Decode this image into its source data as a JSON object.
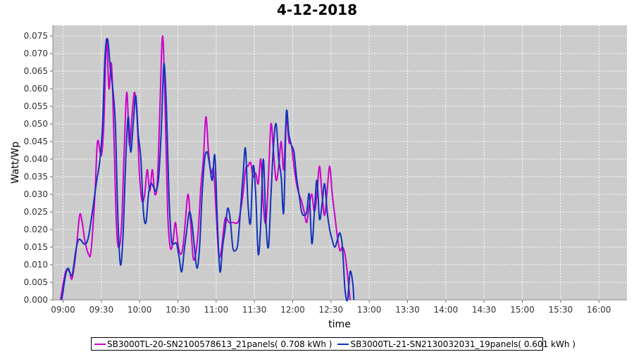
{
  "chart_data": {
    "type": "line",
    "title": "4-12-2018",
    "xlabel": "time",
    "ylabel": "Watt/Wp",
    "xlim": [
      "08:52",
      "16:22"
    ],
    "ylim": [
      0,
      0.078
    ],
    "y_ticks": [
      "0.000",
      "0.005",
      "0.010",
      "0.015",
      "0.020",
      "0.025",
      "0.030",
      "0.035",
      "0.040",
      "0.045",
      "0.050",
      "0.055",
      "0.060",
      "0.065",
      "0.070",
      "0.075"
    ],
    "x_ticks": [
      "09:00",
      "09:30",
      "10:00",
      "10:30",
      "11:00",
      "11:30",
      "12:00",
      "12:30",
      "13:00",
      "13:30",
      "14:00",
      "14:30",
      "15:00",
      "15:30",
      "16:00"
    ],
    "grid": true,
    "legend_position": "bottom",
    "series": [
      {
        "name": "SB3000TL-20-SN2100578613_21panels( 0.708 kWh )",
        "color": "#cc00cc",
        "points": [
          [
            "08:58",
            0.0
          ],
          [
            "09:02",
            0.008
          ],
          [
            "09:05",
            0.008
          ],
          [
            "09:07",
            0.006
          ],
          [
            "09:10",
            0.013
          ],
          [
            "09:13",
            0.024
          ],
          [
            "09:15",
            0.022
          ],
          [
            "09:17",
            0.017
          ],
          [
            "09:20",
            0.013
          ],
          [
            "09:22",
            0.014
          ],
          [
            "09:25",
            0.03
          ],
          [
            "09:27",
            0.045
          ],
          [
            "09:30",
            0.041
          ],
          [
            "09:32",
            0.05
          ],
          [
            "09:34",
            0.074
          ],
          [
            "09:36",
            0.06
          ],
          [
            "09:38",
            0.067
          ],
          [
            "09:40",
            0.045
          ],
          [
            "09:42",
            0.02
          ],
          [
            "09:44",
            0.015
          ],
          [
            "09:46",
            0.022
          ],
          [
            "09:48",
            0.043
          ],
          [
            "09:50",
            0.059
          ],
          [
            "09:52",
            0.044
          ],
          [
            "09:54",
            0.052
          ],
          [
            "09:56",
            0.059
          ],
          [
            "09:58",
            0.052
          ],
          [
            "10:00",
            0.035
          ],
          [
            "10:02",
            0.028
          ],
          [
            "10:04",
            0.03
          ],
          [
            "10:06",
            0.037
          ],
          [
            "10:08",
            0.031
          ],
          [
            "10:10",
            0.037
          ],
          [
            "10:12",
            0.03
          ],
          [
            "10:14",
            0.034
          ],
          [
            "10:16",
            0.055
          ],
          [
            "10:18",
            0.075
          ],
          [
            "10:20",
            0.055
          ],
          [
            "10:22",
            0.025
          ],
          [
            "10:24",
            0.015
          ],
          [
            "10:26",
            0.016
          ],
          [
            "10:28",
            0.022
          ],
          [
            "10:30",
            0.016
          ],
          [
            "10:32",
            0.013
          ],
          [
            "10:34",
            0.015
          ],
          [
            "10:36",
            0.023
          ],
          [
            "10:38",
            0.03
          ],
          [
            "10:40",
            0.022
          ],
          [
            "10:42",
            0.012
          ],
          [
            "10:44",
            0.013
          ],
          [
            "10:46",
            0.02
          ],
          [
            "10:48",
            0.032
          ],
          [
            "10:50",
            0.04
          ],
          [
            "10:52",
            0.052
          ],
          [
            "10:54",
            0.042
          ],
          [
            "10:56",
            0.036
          ],
          [
            "10:58",
            0.037
          ],
          [
            "11:00",
            0.025
          ],
          [
            "11:02",
            0.013
          ],
          [
            "11:04",
            0.014
          ],
          [
            "11:07",
            0.023
          ],
          [
            "11:10",
            0.022
          ],
          [
            "11:13",
            0.022
          ],
          [
            "11:17",
            0.022
          ],
          [
            "11:19",
            0.025
          ],
          [
            "11:21",
            0.03
          ],
          [
            "11:23",
            0.037
          ],
          [
            "11:25",
            0.038
          ],
          [
            "11:27",
            0.039
          ],
          [
            "11:29",
            0.035
          ],
          [
            "11:31",
            0.036
          ],
          [
            "11:33",
            0.033
          ],
          [
            "11:35",
            0.04
          ],
          [
            "11:37",
            0.027
          ],
          [
            "11:39",
            0.022
          ],
          [
            "11:41",
            0.035
          ],
          [
            "11:43",
            0.05
          ],
          [
            "11:45",
            0.042
          ],
          [
            "11:47",
            0.034
          ],
          [
            "11:49",
            0.038
          ],
          [
            "11:51",
            0.045
          ],
          [
            "11:53",
            0.037
          ],
          [
            "11:55",
            0.052
          ],
          [
            "11:57",
            0.045
          ],
          [
            "11:59",
            0.044
          ],
          [
            "12:01",
            0.038
          ],
          [
            "12:03",
            0.033
          ],
          [
            "12:05",
            0.03
          ],
          [
            "12:07",
            0.028
          ],
          [
            "12:09",
            0.025
          ],
          [
            "12:11",
            0.022
          ],
          [
            "12:13",
            0.027
          ],
          [
            "12:15",
            0.03
          ],
          [
            "12:17",
            0.025
          ],
          [
            "12:19",
            0.03
          ],
          [
            "12:21",
            0.038
          ],
          [
            "12:23",
            0.03
          ],
          [
            "12:25",
            0.024
          ],
          [
            "12:27",
            0.031
          ],
          [
            "12:29",
            0.038
          ],
          [
            "12:31",
            0.03
          ],
          [
            "12:33",
            0.024
          ],
          [
            "12:35",
            0.018
          ],
          [
            "12:37",
            0.014
          ],
          [
            "12:39",
            0.015
          ],
          [
            "12:41",
            0.013
          ],
          [
            "12:43",
            0.007
          ],
          [
            "12:45",
            0.0
          ]
        ]
      },
      {
        "name": "SB3000TL-21-SN2130032031_19panels( 0.601 kWh )",
        "color": "#1133bb",
        "points": [
          [
            "08:59",
            0.0
          ],
          [
            "09:02",
            0.007
          ],
          [
            "09:04",
            0.009
          ],
          [
            "09:07",
            0.007
          ],
          [
            "09:10",
            0.014
          ],
          [
            "09:12",
            0.017
          ],
          [
            "09:14",
            0.017
          ],
          [
            "09:16",
            0.016
          ],
          [
            "09:18",
            0.016
          ],
          [
            "09:20",
            0.018
          ],
          [
            "09:23",
            0.025
          ],
          [
            "09:26",
            0.033
          ],
          [
            "09:29",
            0.04
          ],
          [
            "09:31",
            0.05
          ],
          [
            "09:33",
            0.07
          ],
          [
            "09:35",
            0.074
          ],
          [
            "09:37",
            0.066
          ],
          [
            "09:39",
            0.06
          ],
          [
            "09:41",
            0.05
          ],
          [
            "09:43",
            0.023
          ],
          [
            "09:45",
            0.01
          ],
          [
            "09:47",
            0.018
          ],
          [
            "09:49",
            0.038
          ],
          [
            "09:51",
            0.052
          ],
          [
            "09:53",
            0.042
          ],
          [
            "09:55",
            0.05
          ],
          [
            "09:57",
            0.058
          ],
          [
            "09:59",
            0.047
          ],
          [
            "10:01",
            0.04
          ],
          [
            "10:03",
            0.025
          ],
          [
            "10:05",
            0.022
          ],
          [
            "10:07",
            0.03
          ],
          [
            "10:09",
            0.033
          ],
          [
            "10:11",
            0.032
          ],
          [
            "10:13",
            0.031
          ],
          [
            "10:15",
            0.035
          ],
          [
            "10:17",
            0.048
          ],
          [
            "10:19",
            0.067
          ],
          [
            "10:21",
            0.055
          ],
          [
            "10:23",
            0.03
          ],
          [
            "10:25",
            0.017
          ],
          [
            "10:27",
            0.016
          ],
          [
            "10:29",
            0.016
          ],
          [
            "10:31",
            0.012
          ],
          [
            "10:33",
            0.008
          ],
          [
            "10:35",
            0.014
          ],
          [
            "10:37",
            0.02
          ],
          [
            "10:39",
            0.025
          ],
          [
            "10:41",
            0.022
          ],
          [
            "10:43",
            0.015
          ],
          [
            "10:45",
            0.009
          ],
          [
            "10:47",
            0.015
          ],
          [
            "10:49",
            0.03
          ],
          [
            "10:51",
            0.04
          ],
          [
            "10:53",
            0.042
          ],
          [
            "10:55",
            0.038
          ],
          [
            "10:57",
            0.034
          ],
          [
            "10:59",
            0.041
          ],
          [
            "11:01",
            0.022
          ],
          [
            "11:03",
            0.008
          ],
          [
            "11:05",
            0.015
          ],
          [
            "11:07",
            0.02
          ],
          [
            "11:09",
            0.026
          ],
          [
            "11:11",
            0.023
          ],
          [
            "11:13",
            0.015
          ],
          [
            "11:15",
            0.014
          ],
          [
            "11:17",
            0.016
          ],
          [
            "11:19",
            0.025
          ],
          [
            "11:21",
            0.035
          ],
          [
            "11:23",
            0.043
          ],
          [
            "11:25",
            0.027
          ],
          [
            "11:27",
            0.022
          ],
          [
            "11:29",
            0.038
          ],
          [
            "11:31",
            0.03
          ],
          [
            "11:33",
            0.013
          ],
          [
            "11:35",
            0.022
          ],
          [
            "11:37",
            0.04
          ],
          [
            "11:39",
            0.022
          ],
          [
            "11:41",
            0.015
          ],
          [
            "11:43",
            0.03
          ],
          [
            "11:45",
            0.044
          ],
          [
            "11:47",
            0.05
          ],
          [
            "11:49",
            0.04
          ],
          [
            "11:51",
            0.035
          ],
          [
            "11:53",
            0.025
          ],
          [
            "11:55",
            0.053
          ],
          [
            "11:57",
            0.047
          ],
          [
            "11:59",
            0.044
          ],
          [
            "12:01",
            0.042
          ],
          [
            "12:03",
            0.035
          ],
          [
            "12:05",
            0.03
          ],
          [
            "12:07",
            0.025
          ],
          [
            "12:09",
            0.024
          ],
          [
            "12:11",
            0.025
          ],
          [
            "12:13",
            0.03
          ],
          [
            "12:15",
            0.016
          ],
          [
            "12:17",
            0.025
          ],
          [
            "12:19",
            0.034
          ],
          [
            "12:21",
            0.023
          ],
          [
            "12:23",
            0.027
          ],
          [
            "12:25",
            0.033
          ],
          [
            "12:27",
            0.025
          ],
          [
            "12:29",
            0.02
          ],
          [
            "12:31",
            0.017
          ],
          [
            "12:33",
            0.015
          ],
          [
            "12:35",
            0.017
          ],
          [
            "12:37",
            0.019
          ],
          [
            "12:39",
            0.015
          ],
          [
            "12:41",
            0.003
          ],
          [
            "12:43",
            0.0
          ],
          [
            "12:45",
            0.008
          ],
          [
            "12:47",
            0.005
          ],
          [
            "12:48",
            0.0
          ]
        ]
      }
    ]
  }
}
